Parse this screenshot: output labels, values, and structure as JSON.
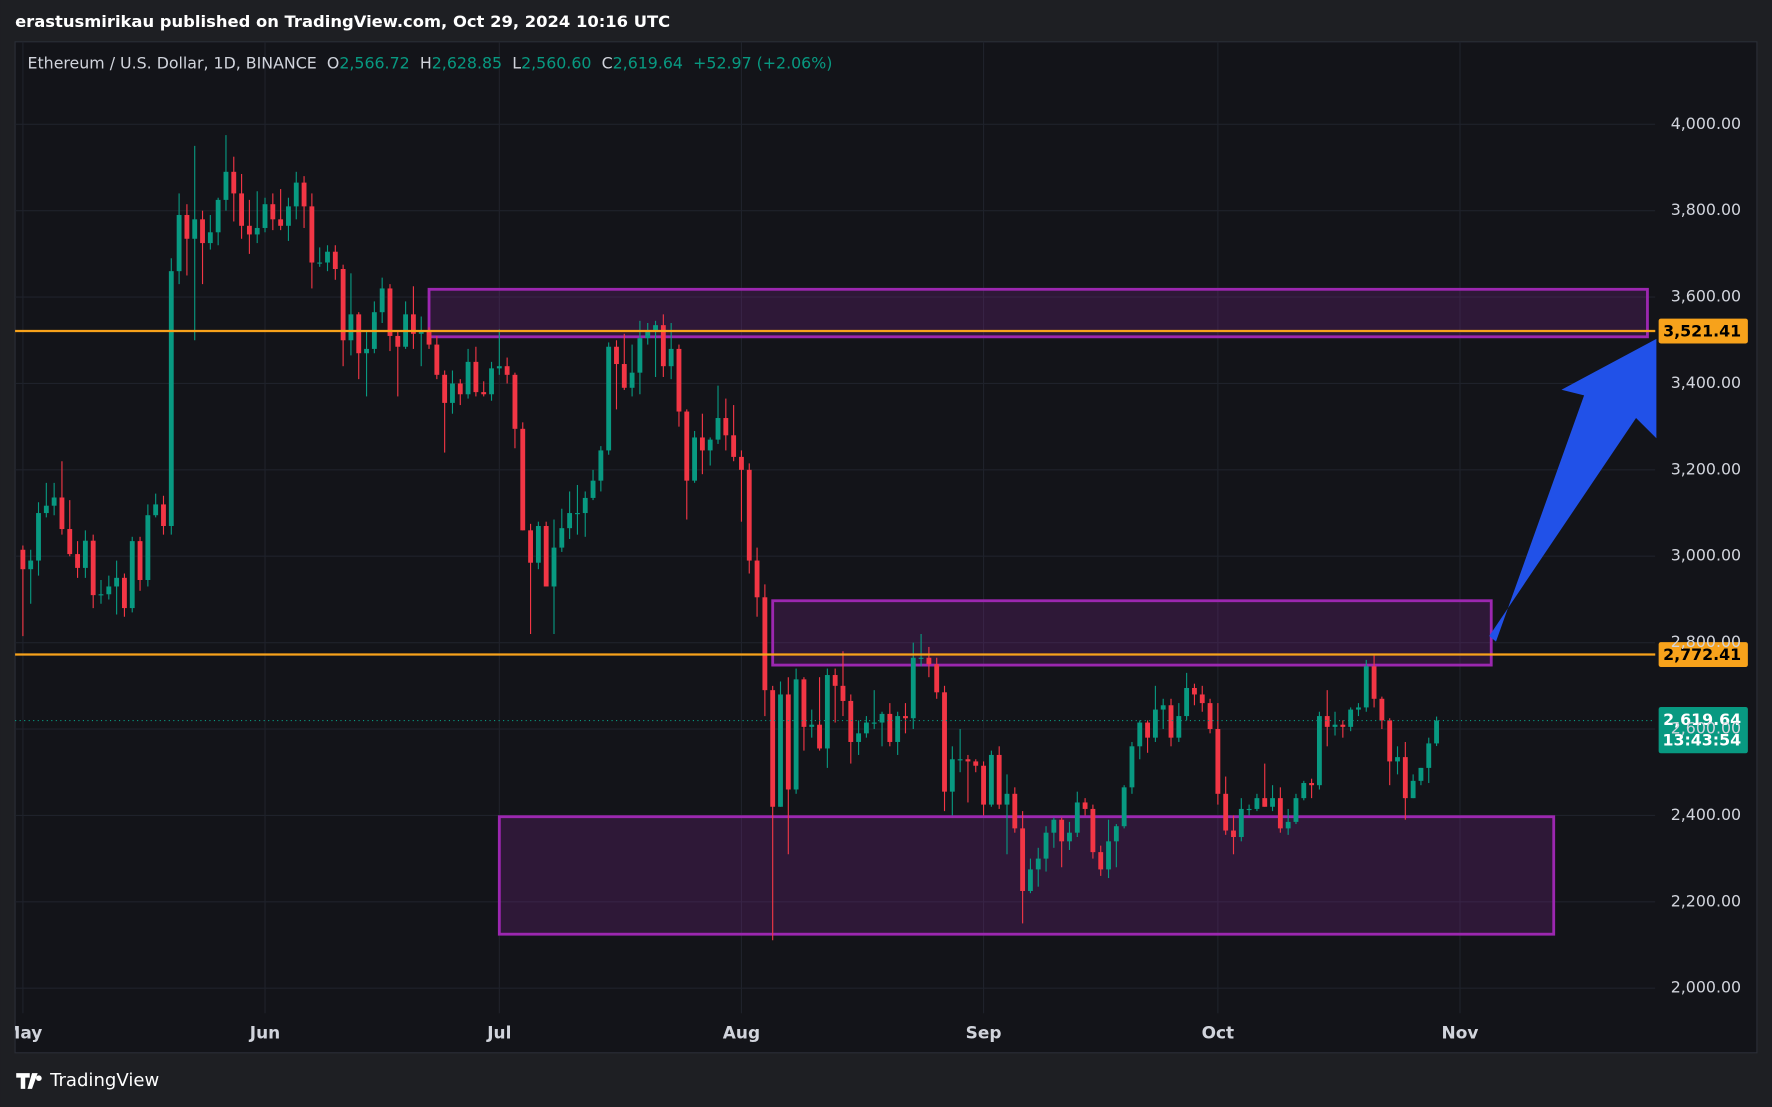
{
  "header": {
    "title": "erastusmirikau published on TradingView.com, Oct 29, 2024 10:16 UTC"
  },
  "footer": {
    "brand": "TradingView"
  },
  "chart_data": {
    "type": "candlestick",
    "legend": {
      "symbol": "Ethereum / U.S. Dollar, 1D, BINANCE",
      "items": [
        {
          "key": "O",
          "value": "2,566.72"
        },
        {
          "key": "H",
          "value": "2,628.85"
        },
        {
          "key": "L",
          "value": "2,560.60"
        },
        {
          "key": "C",
          "value": "2,619.64"
        }
      ],
      "change": "+52.97 (+2.06%)"
    },
    "up_color": "#089981",
    "down_color": "#f23645",
    "x": [
      "2024-05-01",
      "2024-05-02",
      "2024-05-03",
      "2024-05-04",
      "2024-05-05",
      "2024-05-06",
      "2024-05-07",
      "2024-05-08",
      "2024-05-09",
      "2024-05-10",
      "2024-05-11",
      "2024-05-12",
      "2024-05-13",
      "2024-05-14",
      "2024-05-15",
      "2024-05-16",
      "2024-05-17",
      "2024-05-18",
      "2024-05-19",
      "2024-05-20",
      "2024-05-21",
      "2024-05-22",
      "2024-05-23",
      "2024-05-24",
      "2024-05-25",
      "2024-05-26",
      "2024-05-27",
      "2024-05-28",
      "2024-05-29",
      "2024-05-30",
      "2024-05-31",
      "2024-06-01",
      "2024-06-02",
      "2024-06-03",
      "2024-06-04",
      "2024-06-05",
      "2024-06-06",
      "2024-06-07",
      "2024-06-08",
      "2024-06-09",
      "2024-06-10",
      "2024-06-11",
      "2024-06-12",
      "2024-06-13",
      "2024-06-14",
      "2024-06-15",
      "2024-06-16",
      "2024-06-17",
      "2024-06-18",
      "2024-06-19",
      "2024-06-20",
      "2024-06-21",
      "2024-06-22",
      "2024-06-23",
      "2024-06-24",
      "2024-06-25",
      "2024-06-26",
      "2024-06-27",
      "2024-06-28",
      "2024-06-29",
      "2024-06-30",
      "2024-07-01",
      "2024-07-02",
      "2024-07-03",
      "2024-07-04",
      "2024-07-05",
      "2024-07-06",
      "2024-07-07",
      "2024-07-08",
      "2024-07-09",
      "2024-07-10",
      "2024-07-11",
      "2024-07-12",
      "2024-07-13",
      "2024-07-14",
      "2024-07-15",
      "2024-07-16",
      "2024-07-17",
      "2024-07-18",
      "2024-07-19",
      "2024-07-20",
      "2024-07-21",
      "2024-07-22",
      "2024-07-23",
      "2024-07-24",
      "2024-07-25",
      "2024-07-26",
      "2024-07-27",
      "2024-07-28",
      "2024-07-29",
      "2024-07-30",
      "2024-07-31",
      "2024-08-01",
      "2024-08-02",
      "2024-08-03",
      "2024-08-04",
      "2024-08-05",
      "2024-08-06",
      "2024-08-07",
      "2024-08-08",
      "2024-08-09",
      "2024-08-10",
      "2024-08-11",
      "2024-08-12",
      "2024-08-13",
      "2024-08-14",
      "2024-08-15",
      "2024-08-16",
      "2024-08-17",
      "2024-08-18",
      "2024-08-19",
      "2024-08-20",
      "2024-08-21",
      "2024-08-22",
      "2024-08-23",
      "2024-08-24",
      "2024-08-25",
      "2024-08-26",
      "2024-08-27",
      "2024-08-28",
      "2024-08-29",
      "2024-08-30",
      "2024-08-31",
      "2024-09-01",
      "2024-09-02",
      "2024-09-03",
      "2024-09-04",
      "2024-09-05",
      "2024-09-06",
      "2024-09-07",
      "2024-09-08",
      "2024-09-09",
      "2024-09-10",
      "2024-09-11",
      "2024-09-12",
      "2024-09-13",
      "2024-09-14",
      "2024-09-15",
      "2024-09-16",
      "2024-09-17",
      "2024-09-18",
      "2024-09-19",
      "2024-09-20",
      "2024-09-21",
      "2024-09-22",
      "2024-09-23",
      "2024-09-24",
      "2024-09-25",
      "2024-09-26",
      "2024-09-27",
      "2024-09-28",
      "2024-09-29",
      "2024-09-30",
      "2024-10-01",
      "2024-10-02",
      "2024-10-03",
      "2024-10-04",
      "2024-10-05",
      "2024-10-06",
      "2024-10-07",
      "2024-10-08",
      "2024-10-09",
      "2024-10-10",
      "2024-10-11",
      "2024-10-12",
      "2024-10-13",
      "2024-10-14",
      "2024-10-15",
      "2024-10-16",
      "2024-10-17",
      "2024-10-18",
      "2024-10-19",
      "2024-10-20",
      "2024-10-21",
      "2024-10-22",
      "2024-10-23",
      "2024-10-24",
      "2024-10-25",
      "2024-10-26",
      "2024-10-27",
      "2024-10-28",
      "2024-10-29"
    ],
    "ohlc": [
      [
        3015,
        3025,
        2815,
        2970
      ],
      [
        2970,
        3015,
        2890,
        2990
      ],
      [
        2990,
        3125,
        2955,
        3100
      ],
      [
        3100,
        3170,
        3090,
        3117
      ],
      [
        3117,
        3170,
        3095,
        3136
      ],
      [
        3136,
        3220,
        3050,
        3063
      ],
      [
        3063,
        3130,
        3000,
        3005
      ],
      [
        3005,
        3035,
        2950,
        2973
      ],
      [
        2973,
        3060,
        2950,
        3036
      ],
      [
        3036,
        3050,
        2880,
        2910
      ],
      [
        2910,
        2945,
        2890,
        2912
      ],
      [
        2912,
        2955,
        2900,
        2930
      ],
      [
        2930,
        2990,
        2865,
        2950
      ],
      [
        2950,
        2960,
        2860,
        2880
      ],
      [
        2880,
        3045,
        2870,
        3035
      ],
      [
        3035,
        3045,
        2920,
        2945
      ],
      [
        2945,
        3120,
        2930,
        3095
      ],
      [
        3095,
        3145,
        3090,
        3120
      ],
      [
        3120,
        3140,
        3050,
        3070
      ],
      [
        3070,
        3690,
        3050,
        3660
      ],
      [
        3660,
        3840,
        3630,
        3790
      ],
      [
        3790,
        3815,
        3650,
        3735
      ],
      [
        3735,
        3950,
        3500,
        3780
      ],
      [
        3780,
        3800,
        3630,
        3725
      ],
      [
        3725,
        3790,
        3710,
        3750
      ],
      [
        3750,
        3830,
        3720,
        3825
      ],
      [
        3825,
        3975,
        3800,
        3890
      ],
      [
        3890,
        3925,
        3775,
        3840
      ],
      [
        3840,
        3885,
        3735,
        3765
      ],
      [
        3765,
        3825,
        3700,
        3745
      ],
      [
        3745,
        3845,
        3725,
        3760
      ],
      [
        3760,
        3830,
        3750,
        3815
      ],
      [
        3815,
        3840,
        3755,
        3780
      ],
      [
        3780,
        3850,
        3755,
        3765
      ],
      [
        3765,
        3830,
        3730,
        3810
      ],
      [
        3810,
        3890,
        3780,
        3865
      ],
      [
        3865,
        3880,
        3760,
        3810
      ],
      [
        3810,
        3840,
        3620,
        3680
      ],
      [
        3680,
        3715,
        3670,
        3680
      ],
      [
        3680,
        3720,
        3660,
        3705
      ],
      [
        3705,
        3720,
        3640,
        3665
      ],
      [
        3665,
        3675,
        3440,
        3500
      ],
      [
        3500,
        3655,
        3465,
        3560
      ],
      [
        3560,
        3565,
        3410,
        3470
      ],
      [
        3470,
        3520,
        3370,
        3480
      ],
      [
        3480,
        3590,
        3470,
        3565
      ],
      [
        3565,
        3645,
        3540,
        3620
      ],
      [
        3620,
        3630,
        3475,
        3510
      ],
      [
        3510,
        3520,
        3370,
        3485
      ],
      [
        3485,
        3590,
        3480,
        3560
      ],
      [
        3560,
        3625,
        3480,
        3515
      ],
      [
        3515,
        3555,
        3440,
        3520
      ],
      [
        3520,
        3530,
        3480,
        3490
      ],
      [
        3490,
        3510,
        3410,
        3420
      ],
      [
        3420,
        3430,
        3240,
        3355
      ],
      [
        3355,
        3430,
        3330,
        3400
      ],
      [
        3400,
        3410,
        3350,
        3375
      ],
      [
        3375,
        3480,
        3365,
        3450
      ],
      [
        3450,
        3485,
        3370,
        3380
      ],
      [
        3380,
        3405,
        3370,
        3375
      ],
      [
        3375,
        3450,
        3360,
        3435
      ],
      [
        3435,
        3525,
        3420,
        3440
      ],
      [
        3440,
        3460,
        3400,
        3420
      ],
      [
        3420,
        3425,
        3250,
        3295
      ],
      [
        3295,
        3310,
        3060,
        3060
      ],
      [
        3060,
        3075,
        2820,
        2985
      ],
      [
        2985,
        3080,
        2970,
        3070
      ],
      [
        3070,
        3080,
        2930,
        2930
      ],
      [
        2930,
        3085,
        2820,
        3020
      ],
      [
        3020,
        3110,
        3010,
        3065
      ],
      [
        3065,
        3150,
        3040,
        3100
      ],
      [
        3100,
        3165,
        3050,
        3100
      ],
      [
        3100,
        3150,
        3045,
        3135
      ],
      [
        3135,
        3200,
        3130,
        3175
      ],
      [
        3175,
        3255,
        3150,
        3245
      ],
      [
        3245,
        3495,
        3235,
        3485
      ],
      [
        3485,
        3500,
        3340,
        3445
      ],
      [
        3445,
        3515,
        3385,
        3390
      ],
      [
        3390,
        3490,
        3370,
        3425
      ],
      [
        3425,
        3545,
        3375,
        3505
      ],
      [
        3505,
        3540,
        3490,
        3520
      ],
      [
        3520,
        3545,
        3415,
        3535
      ],
      [
        3535,
        3560,
        3415,
        3440
      ],
      [
        3440,
        3540,
        3410,
        3480
      ],
      [
        3480,
        3490,
        3300,
        3335
      ],
      [
        3335,
        3340,
        3085,
        3175
      ],
      [
        3175,
        3290,
        3170,
        3275
      ],
      [
        3275,
        3330,
        3190,
        3245
      ],
      [
        3245,
        3275,
        3210,
        3270
      ],
      [
        3270,
        3395,
        3260,
        3320
      ],
      [
        3320,
        3365,
        3245,
        3280
      ],
      [
        3280,
        3350,
        3220,
        3230
      ],
      [
        3230,
        3245,
        3080,
        3200
      ],
      [
        3200,
        3215,
        2960,
        2990
      ],
      [
        2990,
        3020,
        2860,
        2905
      ],
      [
        2905,
        2935,
        2630,
        2690
      ],
      [
        2690,
        2700,
        2111,
        2420
      ],
      [
        2420,
        2710,
        2420,
        2680
      ],
      [
        2680,
        2720,
        2310,
        2460
      ],
      [
        2460,
        2740,
        2450,
        2715
      ],
      [
        2715,
        2720,
        2550,
        2605
      ],
      [
        2605,
        2645,
        2580,
        2610
      ],
      [
        2610,
        2720,
        2550,
        2555
      ],
      [
        2555,
        2740,
        2510,
        2725
      ],
      [
        2725,
        2740,
        2615,
        2700
      ],
      [
        2700,
        2780,
        2630,
        2665
      ],
      [
        2665,
        2680,
        2520,
        2570
      ],
      [
        2570,
        2620,
        2540,
        2590
      ],
      [
        2590,
        2630,
        2580,
        2615
      ],
      [
        2615,
        2690,
        2600,
        2615
      ],
      [
        2615,
        2640,
        2560,
        2635
      ],
      [
        2635,
        2660,
        2560,
        2570
      ],
      [
        2570,
        2640,
        2540,
        2630
      ],
      [
        2630,
        2660,
        2590,
        2625
      ],
      [
        2625,
        2800,
        2600,
        2765
      ],
      [
        2765,
        2820,
        2745,
        2765
      ],
      [
        2765,
        2790,
        2720,
        2750
      ],
      [
        2750,
        2765,
        2670,
        2685
      ],
      [
        2685,
        2700,
        2410,
        2455
      ],
      [
        2455,
        2560,
        2400,
        2530
      ],
      [
        2530,
        2600,
        2500,
        2530
      ],
      [
        2530,
        2540,
        2430,
        2525
      ],
      [
        2525,
        2530,
        2500,
        2515
      ],
      [
        2515,
        2525,
        2400,
        2425
      ],
      [
        2425,
        2550,
        2420,
        2540
      ],
      [
        2540,
        2560,
        2415,
        2425
      ],
      [
        2425,
        2495,
        2310,
        2450
      ],
      [
        2450,
        2465,
        2360,
        2370
      ],
      [
        2370,
        2410,
        2150,
        2225
      ],
      [
        2225,
        2300,
        2220,
        2275
      ],
      [
        2275,
        2325,
        2235,
        2300
      ],
      [
        2300,
        2375,
        2270,
        2360
      ],
      [
        2360,
        2395,
        2325,
        2390
      ],
      [
        2390,
        2395,
        2280,
        2340
      ],
      [
        2340,
        2385,
        2320,
        2360
      ],
      [
        2360,
        2455,
        2350,
        2430
      ],
      [
        2430,
        2440,
        2400,
        2415
      ],
      [
        2415,
        2425,
        2300,
        2315
      ],
      [
        2315,
        2330,
        2260,
        2275
      ],
      [
        2275,
        2390,
        2255,
        2340
      ],
      [
        2340,
        2380,
        2280,
        2375
      ],
      [
        2375,
        2470,
        2370,
        2465
      ],
      [
        2465,
        2570,
        2450,
        2560
      ],
      [
        2560,
        2620,
        2530,
        2615
      ],
      [
        2615,
        2620,
        2545,
        2580
      ],
      [
        2580,
        2700,
        2570,
        2645
      ],
      [
        2645,
        2670,
        2600,
        2655
      ],
      [
        2655,
        2670,
        2560,
        2580
      ],
      [
        2580,
        2660,
        2570,
        2630
      ],
      [
        2630,
        2730,
        2620,
        2695
      ],
      [
        2695,
        2705,
        2655,
        2680
      ],
      [
        2680,
        2700,
        2640,
        2660
      ],
      [
        2660,
        2670,
        2590,
        2600
      ],
      [
        2600,
        2660,
        2425,
        2450
      ],
      [
        2450,
        2490,
        2355,
        2365
      ],
      [
        2365,
        2400,
        2310,
        2350
      ],
      [
        2350,
        2440,
        2340,
        2415
      ],
      [
        2415,
        2425,
        2400,
        2415
      ],
      [
        2415,
        2450,
        2410,
        2440
      ],
      [
        2440,
        2520,
        2420,
        2420
      ],
      [
        2420,
        2470,
        2410,
        2440
      ],
      [
        2440,
        2465,
        2360,
        2370
      ],
      [
        2370,
        2415,
        2355,
        2385
      ],
      [
        2385,
        2450,
        2380,
        2440
      ],
      [
        2440,
        2480,
        2435,
        2475
      ],
      [
        2475,
        2485,
        2440,
        2470
      ],
      [
        2470,
        2640,
        2460,
        2630
      ],
      [
        2630,
        2690,
        2560,
        2605
      ],
      [
        2605,
        2640,
        2585,
        2610
      ],
      [
        2610,
        2620,
        2580,
        2605
      ],
      [
        2605,
        2650,
        2595,
        2645
      ],
      [
        2645,
        2660,
        2630,
        2650
      ],
      [
        2650,
        2760,
        2640,
        2745
      ],
      [
        2745,
        2770,
        2650,
        2670
      ],
      [
        2670,
        2675,
        2600,
        2620
      ],
      [
        2620,
        2625,
        2470,
        2525
      ],
      [
        2525,
        2560,
        2495,
        2535
      ],
      [
        2535,
        2570,
        2390,
        2440
      ],
      [
        2440,
        2495,
        2440,
        2480
      ],
      [
        2480,
        2510,
        2470,
        2510
      ],
      [
        2510,
        2580,
        2475,
        2566.72
      ],
      [
        2566.72,
        2628.85,
        2560.6,
        2619.64
      ]
    ],
    "xlim": [
      "2024-04-30",
      "2024-11-26"
    ],
    "xticks": [
      {
        "value": "2024-05-01",
        "label": "May"
      },
      {
        "value": "2024-06-01",
        "label": "Jun"
      },
      {
        "value": "2024-07-01",
        "label": "Jul"
      },
      {
        "value": "2024-08-01",
        "label": "Aug"
      },
      {
        "value": "2024-09-01",
        "label": "Sep"
      },
      {
        "value": "2024-10-01",
        "label": "Oct"
      },
      {
        "value": "2024-11-01",
        "label": "Nov"
      }
    ],
    "ylim": [
      1942,
      4191
    ],
    "yticks": [
      {
        "value": 2000,
        "label": "2,000.00"
      },
      {
        "value": 2200,
        "label": "2,200.00"
      },
      {
        "value": 2400,
        "label": "2,400.00"
      },
      {
        "value": 2600,
        "label": "2,600.00"
      },
      {
        "value": 2800,
        "label": "2,800.00"
      },
      {
        "value": 3000,
        "label": "3,000.00"
      },
      {
        "value": 3200,
        "label": "3,200.00"
      },
      {
        "value": 3400,
        "label": "3,400.00"
      },
      {
        "value": 3600,
        "label": "3,600.00"
      },
      {
        "value": 3800,
        "label": "3,800.00"
      },
      {
        "value": 4000,
        "label": "4,000.00"
      }
    ],
    "grid": true,
    "levels": [
      {
        "value": 3521.41,
        "label": "3,521.41",
        "color": "#f7a21b"
      },
      {
        "value": 2772.41,
        "label": "2,772.41",
        "color": "#f7a21b"
      }
    ],
    "zones": [
      {
        "from": "2024-06-22",
        "to": "2024-11-25",
        "top": 3618,
        "bottom": 3508,
        "color": "#9c27b0"
      },
      {
        "from": "2024-08-05",
        "to": "2024-11-05",
        "top": 2897,
        "bottom": 2748,
        "color": "#9c27b0"
      },
      {
        "from": "2024-07-01",
        "to": "2024-11-13",
        "top": 2397,
        "bottom": 2125,
        "color": "#9c27b0"
      }
    ],
    "price_tag": {
      "label": "2,619.64",
      "countdown": "13:43:54"
    }
  }
}
